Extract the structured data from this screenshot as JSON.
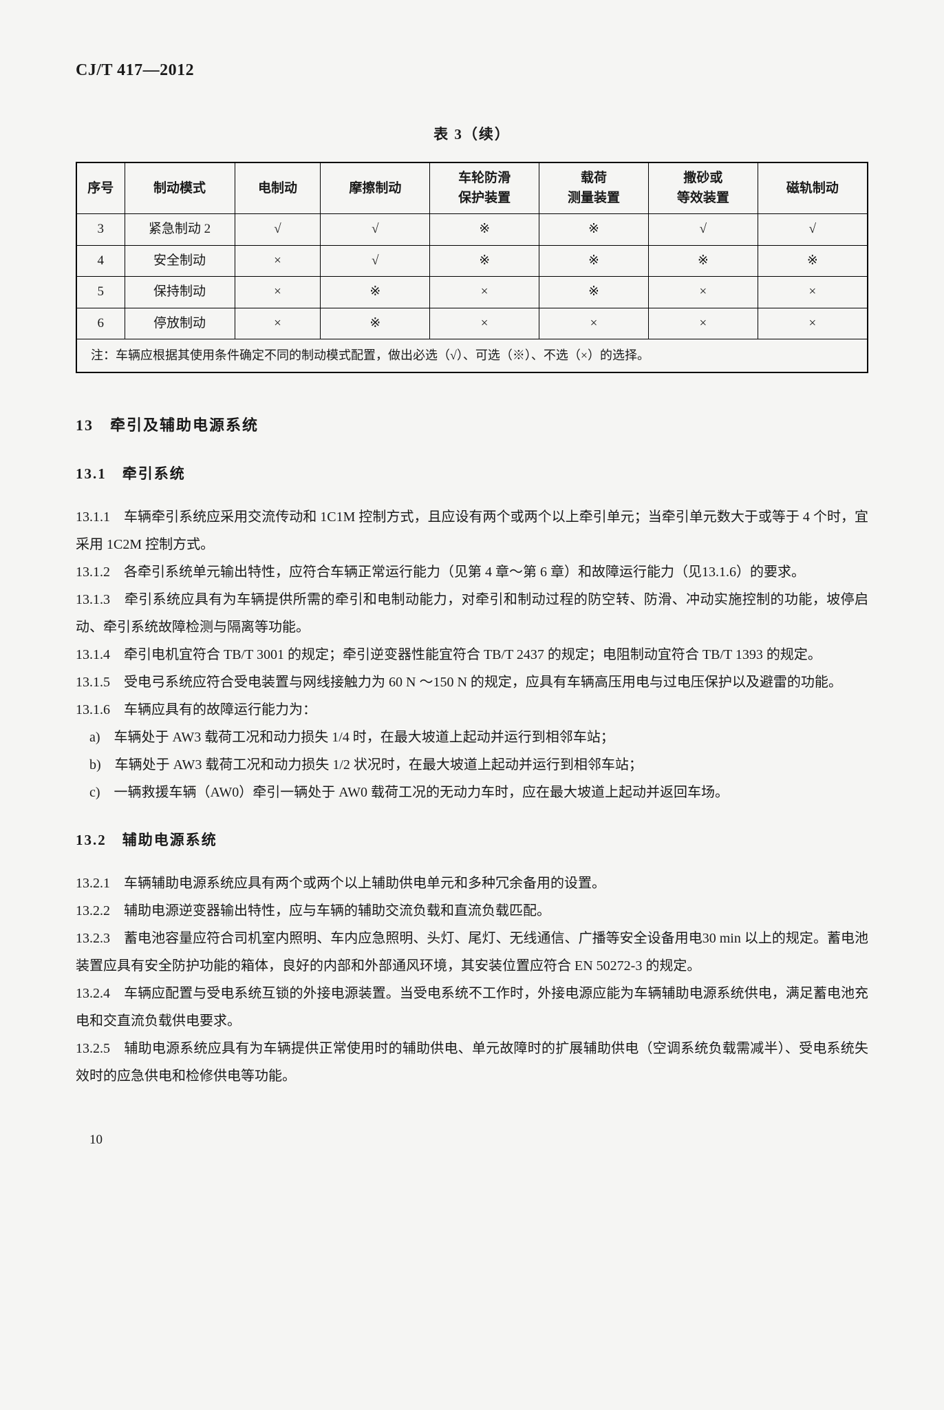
{
  "doc_id": "CJ/T 417—2012",
  "table": {
    "caption": "表 3（续）",
    "columns": [
      "序号",
      "制动模式",
      "电制动",
      "摩擦制动",
      "车轮防滑\n保护装置",
      "载荷\n测量装置",
      "撒砂或\n等效装置",
      "磁轨制动"
    ],
    "rows": [
      [
        "3",
        "紧急制动 2",
        "√",
        "√",
        "※",
        "※",
        "√",
        "√"
      ],
      [
        "4",
        "安全制动",
        "×",
        "√",
        "※",
        "※",
        "※",
        "※"
      ],
      [
        "5",
        "保持制动",
        "×",
        "※",
        "×",
        "※",
        "×",
        "×"
      ],
      [
        "6",
        "停放制动",
        "×",
        "※",
        "×",
        "×",
        "×",
        "×"
      ]
    ],
    "note": "注：车辆应根据其使用条件确定不同的制动模式配置，做出必选（√）、可选（※）、不选（×）的选择。"
  },
  "s13": {
    "title": "13　牵引及辅助电源系统",
    "s131": {
      "title": "13.1　牵引系统",
      "p1": "13.1.1　车辆牵引系统应采用交流传动和 1C1M 控制方式，且应设有两个或两个以上牵引单元；当牵引单元数大于或等于 4 个时，宜采用 1C2M 控制方式。",
      "p2": "13.1.2　各牵引系统单元输出特性，应符合车辆正常运行能力（见第 4 章～第 6 章）和故障运行能力（见13.1.6）的要求。",
      "p3": "13.1.3　牵引系统应具有为车辆提供所需的牵引和电制动能力，对牵引和制动过程的防空转、防滑、冲动实施控制的功能，坡停启动、牵引系统故障检测与隔离等功能。",
      "p4": "13.1.4　牵引电机宜符合 TB/T 3001 的规定；牵引逆变器性能宜符合 TB/T 2437 的规定；电阻制动宜符合 TB/T 1393 的规定。",
      "p5": "13.1.5　受电弓系统应符合受电装置与网线接触力为 60 N ～150 N 的规定，应具有车辆高压用电与过电压保护以及避雷的功能。",
      "p6": "13.1.6　车辆应具有的故障运行能力为：",
      "list": {
        "a": "a)　车辆处于 AW3 载荷工况和动力损失 1/4 时，在最大坡道上起动并运行到相邻车站；",
        "b": "b)　车辆处于 AW3 载荷工况和动力损失 1/2 状况时，在最大坡道上起动并运行到相邻车站；",
        "c": "c)　一辆救援车辆（AW0）牵引一辆处于 AW0 载荷工况的无动力车时，应在最大坡道上起动并返回车场。"
      }
    },
    "s132": {
      "title": "13.2　辅助电源系统",
      "p1": "13.2.1　车辆辅助电源系统应具有两个或两个以上辅助供电单元和多种冗余备用的设置。",
      "p2": "13.2.2　辅助电源逆变器输出特性，应与车辆的辅助交流负载和直流负载匹配。",
      "p3": "13.2.3　蓄电池容量应符合司机室内照明、车内应急照明、头灯、尾灯、无线通信、广播等安全设备用电30 min 以上的规定。蓄电池装置应具有安全防护功能的箱体，良好的内部和外部通风环境，其安装位置应符合 EN 50272-3 的规定。",
      "p4": "13.2.4　车辆应配置与受电系统互锁的外接电源装置。当受电系统不工作时，外接电源应能为车辆辅助电源系统供电，满足蓄电池充电和交直流负载供电要求。",
      "p5": "13.2.5　辅助电源系统应具有为车辆提供正常使用时的辅助供电、单元故障时的扩展辅助供电（空调系统负载需减半）、受电系统失效时的应急供电和检修供电等功能。"
    }
  },
  "page_number": "10"
}
